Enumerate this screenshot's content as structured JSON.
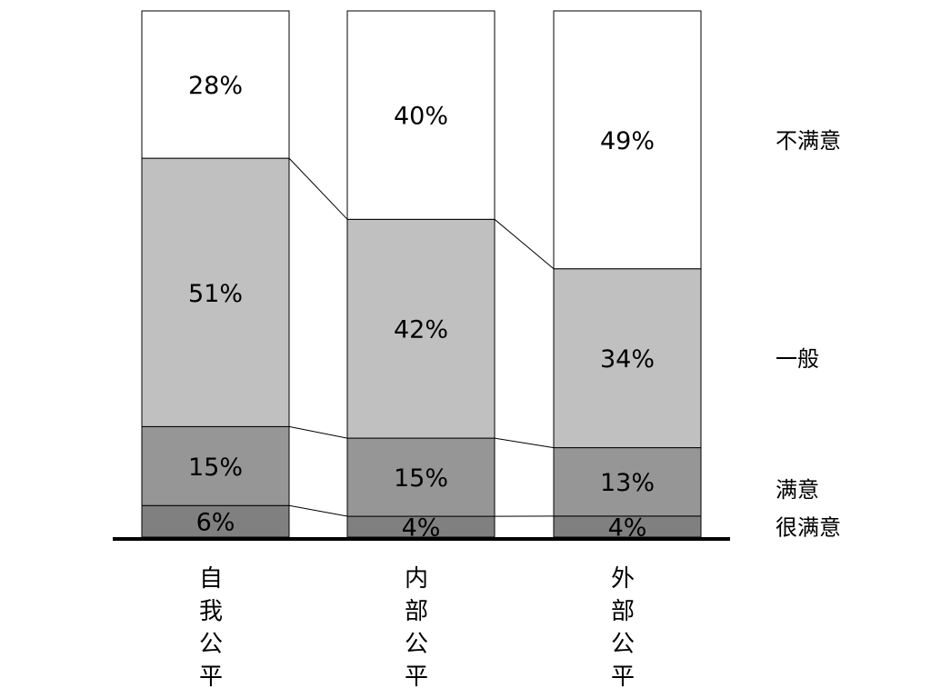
{
  "chart_data": {
    "type": "bar",
    "stacked": "100%",
    "categories": [
      "自我公平",
      "内部公平",
      "外部公平"
    ],
    "series": [
      {
        "name": "很满意",
        "values": [
          6,
          4,
          4
        ],
        "labels": [
          "6%",
          "4%",
          "4%"
        ],
        "color": "#808080"
      },
      {
        "name": "满意",
        "values": [
          15,
          15,
          13
        ],
        "labels": [
          "15%",
          "15%",
          "13%"
        ],
        "color": "#969696"
      },
      {
        "name": "一般",
        "values": [
          51,
          42,
          34
        ],
        "labels": [
          "51%",
          "42%",
          "34%"
        ],
        "color": "#c0c0c0"
      },
      {
        "name": "不满意",
        "values": [
          28,
          40,
          49
        ],
        "labels": [
          "28%",
          "40%",
          "49%"
        ],
        "color": "#ffffff"
      }
    ],
    "series_lines": true,
    "legend_position": "right",
    "title": "",
    "xlabel": "",
    "ylabel": "",
    "ylim": [
      0,
      100
    ]
  }
}
